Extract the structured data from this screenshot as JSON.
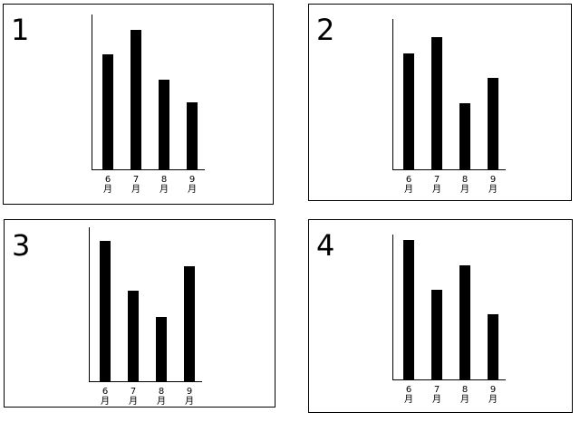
{
  "chart_data": [
    {
      "type": "bar",
      "title": "1",
      "categories": [
        "6月",
        "7月",
        "8月",
        "9月"
      ],
      "values": [
        74,
        90,
        58,
        43
      ],
      "color": "#000000",
      "ylim": [
        0,
        100
      ]
    },
    {
      "type": "bar",
      "title": "2",
      "categories": [
        "6月",
        "7月",
        "8月",
        "9月"
      ],
      "values": [
        77,
        88,
        44,
        61
      ],
      "color": "#000000",
      "ylim": [
        0,
        100
      ]
    },
    {
      "type": "bar",
      "title": "3",
      "categories": [
        "6月",
        "7月",
        "8月",
        "9月"
      ],
      "values": [
        91,
        59,
        42,
        75
      ],
      "color": "#000000",
      "ylim": [
        0,
        100
      ]
    },
    {
      "type": "bar",
      "title": "4",
      "categories": [
        "6月",
        "7月",
        "8月",
        "9月"
      ],
      "values": [
        96,
        62,
        79,
        45
      ],
      "color": "#000000",
      "ylim": [
        0,
        100
      ]
    }
  ]
}
